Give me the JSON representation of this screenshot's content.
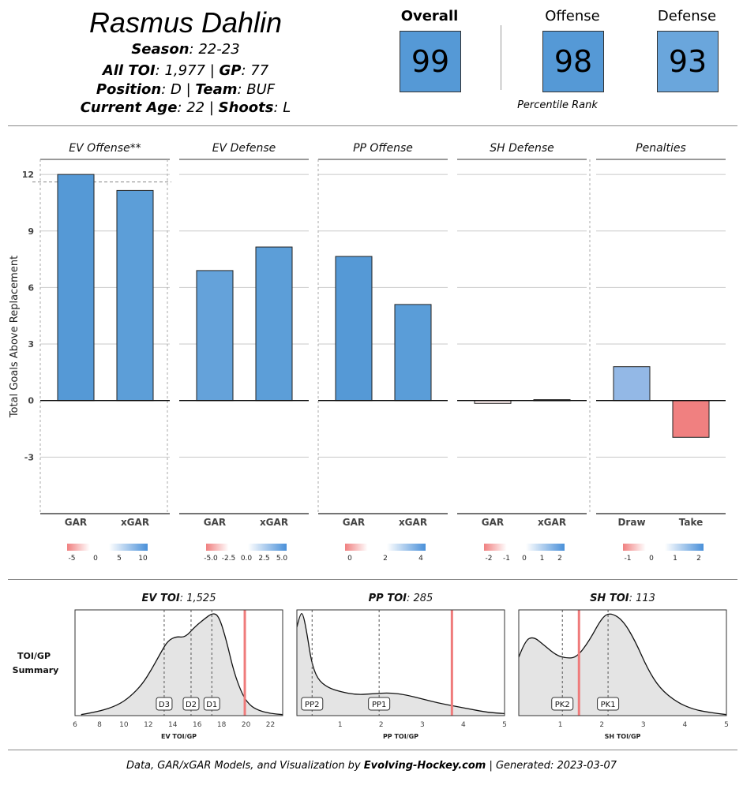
{
  "player": {
    "name": "Rasmus Dahlin",
    "season_label": "Season",
    "season_value": "22-23",
    "toi_label": "All TOI",
    "toi_value": "1,977",
    "gp_label": "GP",
    "gp_value": "77",
    "pos_label": "Position",
    "pos_value": "D",
    "team_label": "Team",
    "team_value": "BUF",
    "age_label": "Current Age",
    "age_value": "22",
    "shoots_label": "Shoots",
    "shoots_value": "L"
  },
  "percentiles": {
    "overall_label": "Overall",
    "overall_value": "99",
    "offense_label": "Offense",
    "offense_value": "98",
    "defense_label": "Defense",
    "defense_value": "93",
    "caption": "Percentile Rank",
    "colors": {
      "overall": "#5599d6",
      "offense": "#5599d6",
      "defense": "#6aa6dc"
    }
  },
  "chart_data": [
    {
      "type": "bar",
      "ylabel": "Total Goals Above Replacement",
      "ylim": [
        -6,
        12.8
      ],
      "yticks": [
        12,
        9,
        6,
        3,
        0,
        -3
      ],
      "panels": [
        {
          "title": "EV Offense**",
          "categories": [
            "GAR",
            "xGAR"
          ],
          "values": [
            12.0,
            11.15
          ],
          "colors": [
            "#5599d6",
            "#5c9ed8"
          ],
          "reference_line": 11.6,
          "legend_ticks": [
            "-5",
            "0",
            "5",
            "10"
          ]
        },
        {
          "title": "EV Defense",
          "categories": [
            "GAR",
            "xGAR"
          ],
          "values": [
            6.9,
            8.15
          ],
          "colors": [
            "#64a2da",
            "#5c9ed8"
          ],
          "legend_ticks": [
            "-5.0",
            "-2.5",
            "0.0",
            "2.5",
            "5.0"
          ]
        },
        {
          "title": "PP Offense",
          "categories": [
            "GAR",
            "xGAR"
          ],
          "values": [
            7.65,
            5.1
          ],
          "colors": [
            "#5599d6",
            "#5a9dd8"
          ],
          "legend_ticks": [
            "0",
            "2",
            "4"
          ]
        },
        {
          "title": "SH Defense",
          "categories": [
            "GAR",
            "xGAR"
          ],
          "values": [
            -0.15,
            0.05
          ],
          "colors": [
            "#fbecec",
            "#eef3fa"
          ],
          "legend_ticks": [
            "-2",
            "-1",
            "0",
            "1",
            "2"
          ]
        },
        {
          "title": "Penalties",
          "categories": [
            "Draw",
            "Take"
          ],
          "values": [
            1.8,
            -1.95
          ],
          "colors": [
            "#93b8e6",
            "#f08080"
          ],
          "legend_ticks": [
            "-1",
            "0",
            "1",
            "2"
          ]
        }
      ]
    },
    {
      "type": "area",
      "label": "TOI/GP Summary",
      "panels": [
        {
          "title_bold": "EV TOI",
          "title_value": "1,525",
          "xlabel": "EV TOI/GP",
          "xlim": [
            6,
            23
          ],
          "xticks": [
            6,
            8,
            10,
            12,
            14,
            16,
            18,
            20,
            22
          ],
          "player_value": 19.9,
          "markers": [
            {
              "label": "D3",
              "x": 13.3
            },
            {
              "label": "D2",
              "x": 15.5
            },
            {
              "label": "D1",
              "x": 17.2
            }
          ],
          "density": [
            [
              6.5,
              0.01
            ],
            [
              8,
              0.04
            ],
            [
              9.5,
              0.1
            ],
            [
              10.5,
              0.18
            ],
            [
              11.5,
              0.3
            ],
            [
              12.3,
              0.45
            ],
            [
              13,
              0.6
            ],
            [
              13.6,
              0.72
            ],
            [
              14.3,
              0.76
            ],
            [
              15,
              0.75
            ],
            [
              15.8,
              0.85
            ],
            [
              16.5,
              0.92
            ],
            [
              17.3,
              0.99
            ],
            [
              17.8,
              0.95
            ],
            [
              18.4,
              0.72
            ],
            [
              19,
              0.42
            ],
            [
              19.7,
              0.2
            ],
            [
              20.3,
              0.1
            ],
            [
              21,
              0.05
            ],
            [
              22,
              0.02
            ],
            [
              23,
              0.01
            ]
          ]
        },
        {
          "title_bold": "PP TOI",
          "title_value": "285",
          "xlabel": "PP TOI/GP",
          "xlim": [
            -0.05,
            5
          ],
          "xticks": [
            1,
            2,
            3,
            4,
            5
          ],
          "player_value": 3.72,
          "markers": [
            {
              "label": "PP2",
              "x": 0.32
            },
            {
              "label": "PP1",
              "x": 1.95
            }
          ],
          "density": [
            [
              -0.05,
              0.85
            ],
            [
              0.03,
              0.98
            ],
            [
              0.1,
              0.98
            ],
            [
              0.2,
              0.78
            ],
            [
              0.3,
              0.52
            ],
            [
              0.45,
              0.35
            ],
            [
              0.7,
              0.27
            ],
            [
              1.0,
              0.23
            ],
            [
              1.4,
              0.2
            ],
            [
              1.8,
              0.21
            ],
            [
              2.2,
              0.22
            ],
            [
              2.6,
              0.2
            ],
            [
              3.0,
              0.16
            ],
            [
              3.4,
              0.12
            ],
            [
              3.8,
              0.09
            ],
            [
              4.2,
              0.06
            ],
            [
              4.6,
              0.03
            ],
            [
              5,
              0.02
            ]
          ]
        },
        {
          "title_bold": "SH TOI",
          "title_value": "113",
          "xlabel": "SH TOI/GP",
          "xlim": [
            0,
            5
          ],
          "xticks": [
            1,
            2,
            3,
            4,
            5
          ],
          "player_value": 1.45,
          "markers": [
            {
              "label": "PK2",
              "x": 1.05
            },
            {
              "label": "PK1",
              "x": 2.15
            }
          ],
          "density": [
            [
              0,
              0.56
            ],
            [
              0.15,
              0.72
            ],
            [
              0.35,
              0.76
            ],
            [
              0.6,
              0.68
            ],
            [
              0.9,
              0.58
            ],
            [
              1.15,
              0.55
            ],
            [
              1.4,
              0.56
            ],
            [
              1.7,
              0.72
            ],
            [
              2.0,
              0.94
            ],
            [
              2.2,
              0.99
            ],
            [
              2.5,
              0.92
            ],
            [
              2.8,
              0.72
            ],
            [
              3.1,
              0.45
            ],
            [
              3.4,
              0.26
            ],
            [
              3.8,
              0.13
            ],
            [
              4.2,
              0.06
            ],
            [
              4.6,
              0.03
            ],
            [
              5,
              0.01
            ]
          ]
        }
      ]
    }
  ],
  "footer": {
    "prefix": "Data, GAR/xGAR Models, and Visualization by",
    "brand": "Evolving-Hockey.com",
    "suffix": "| Generated: 2023-03-07"
  }
}
